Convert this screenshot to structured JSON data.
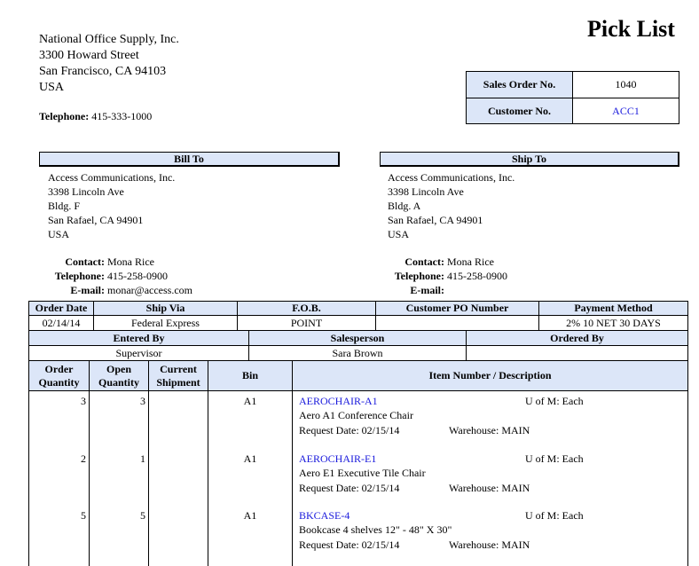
{
  "title": "Pick List",
  "company": {
    "name": "National Office Supply, Inc.",
    "street": "3300 Howard Street",
    "city": "San Francisco, CA 94103",
    "country": "USA",
    "telephone_label": "Telephone:",
    "telephone": "415-333-1000"
  },
  "order_info": {
    "sales_order_label": "Sales Order No.",
    "sales_order": "1040",
    "customer_label": "Customer No.",
    "customer": "ACC1"
  },
  "bill_to": {
    "heading": "Bill To",
    "lines": [
      "Access Communications, Inc.",
      "3398 Lincoln Ave",
      "Bldg. F",
      "San Rafael, CA 94901",
      "USA"
    ],
    "contact_label": "Contact:",
    "contact": "Mona Rice",
    "telephone_label": "Telephone:",
    "telephone": "415-258-0900",
    "email_label": "E-mail:",
    "email": "monar@access.com"
  },
  "ship_to": {
    "heading": "Ship To",
    "lines": [
      "Access Communications, Inc.",
      "3398 Lincoln Ave",
      "Bldg. A",
      "San Rafael, CA 94901",
      "USA"
    ],
    "contact_label": "Contact:",
    "contact": "Mona Rice",
    "telephone_label": "Telephone:",
    "telephone": "415-258-0900",
    "email_label": "E-mail:",
    "email": ""
  },
  "details": {
    "headers": [
      "Order Date",
      "Ship Via",
      "F.O.B.",
      "Customer PO Number",
      "Payment Method"
    ],
    "values": [
      "02/14/14",
      "Federal Express",
      "POINT",
      "",
      "2% 10 NET 30 DAYS"
    ]
  },
  "people": {
    "headers": [
      "Entered By",
      "Salesperson",
      "Ordered By"
    ],
    "values": [
      "Supervisor",
      "Sara Brown",
      ""
    ]
  },
  "items_table": {
    "headers": [
      "Order Quantity",
      "Open Quantity",
      "Current Shipment",
      "Bin",
      "Item Number / Description"
    ],
    "rows": [
      {
        "order_qty": "3",
        "open_qty": "3",
        "current": "",
        "bin": "A1",
        "item": "AEROCHAIR-A1",
        "uom": "U of M: Each",
        "desc": "Aero A1 Conference Chair",
        "request": "Request Date: 02/15/14",
        "warehouse": "Warehouse: MAIN"
      },
      {
        "order_qty": "2",
        "open_qty": "1",
        "current": "",
        "bin": "A1",
        "item": "AEROCHAIR-E1",
        "uom": "U of M: Each",
        "desc": "Aero E1 Executive Tile Chair",
        "request": "Request Date: 02/15/14",
        "warehouse": "Warehouse: MAIN"
      },
      {
        "order_qty": "5",
        "open_qty": "5",
        "current": "",
        "bin": "A1",
        "item": "BKCASE-4",
        "uom": "U of M: Each",
        "desc": "Bookcase 4 shelves 12\" - 48\" X 30\"",
        "request": "Request Date: 02/15/14",
        "warehouse": "Warehouse: MAIN"
      }
    ]
  },
  "colors": {
    "header_bg": "#dce6f8",
    "link": "#1a1adc"
  }
}
